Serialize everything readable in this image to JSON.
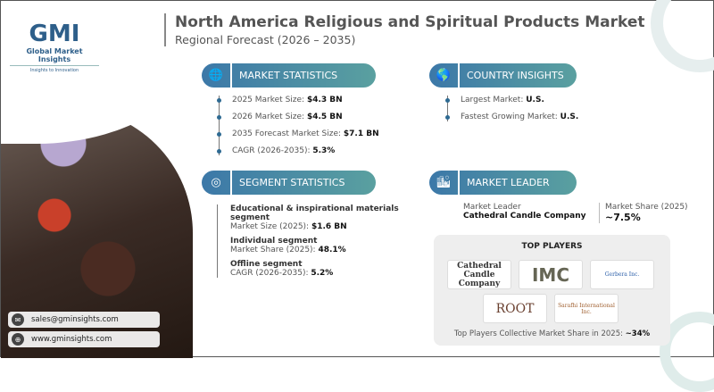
{
  "brand": {
    "mark": "GMI",
    "name": "Global Market Insights",
    "tagline": "Insights to Innovation"
  },
  "title": "North America Religious and Spiritual Products Market",
  "subtitle": "Regional Forecast (2026 – 2035)",
  "market_statistics": {
    "heading": "MARKET STATISTICS",
    "items": [
      {
        "label": "2025 Market Size: ",
        "value": "$4.3 BN"
      },
      {
        "label": "2026 Market Size: ",
        "value": "$4.5 BN"
      },
      {
        "label": "2035 Forecast Market Size: ",
        "value": "$7.1 BN"
      },
      {
        "label": "CAGR (2026-2035): ",
        "value": "5.3%"
      }
    ]
  },
  "country_insights": {
    "heading": "COUNTRY INSIGHTS",
    "items": [
      {
        "label": "Largest Market: ",
        "value": "U.S."
      },
      {
        "label": "Fastest Growing Market: ",
        "value": "U.S."
      }
    ]
  },
  "segment_statistics": {
    "heading": "SEGMENT STATISTICS",
    "items": [
      {
        "name": "Educational & inspirational materials segment",
        "label": "Market Size (2025): ",
        "value": "$1.6 BN"
      },
      {
        "name": "Individual segment",
        "label": "Market Share (2025): ",
        "value": "48.1%"
      },
      {
        "name": "Offline segment",
        "label": "CAGR (2026-2035): ",
        "value": "5.2%"
      }
    ]
  },
  "market_leader": {
    "heading": "MARKET LEADER",
    "leader_label": "Market Leader",
    "leader": "Cathedral Candle Company",
    "share_label": "Market Share (2025)",
    "share": "~7.5%"
  },
  "top_players": {
    "heading": "TOP PLAYERS",
    "logos": [
      "Cathedral Candle Company",
      "IMC",
      "Gerbera Inc.",
      "ROOT",
      "Sarafhi International Inc."
    ],
    "footer_label": "Top Players Collective Market Share in 2025: ",
    "footer_value": "~34%"
  },
  "contact": {
    "email": "sales@gminsights.com",
    "website": "www.gminsights.com"
  },
  "colors": {
    "accent": "#3c78a8",
    "accent2": "#5aa0a0"
  }
}
